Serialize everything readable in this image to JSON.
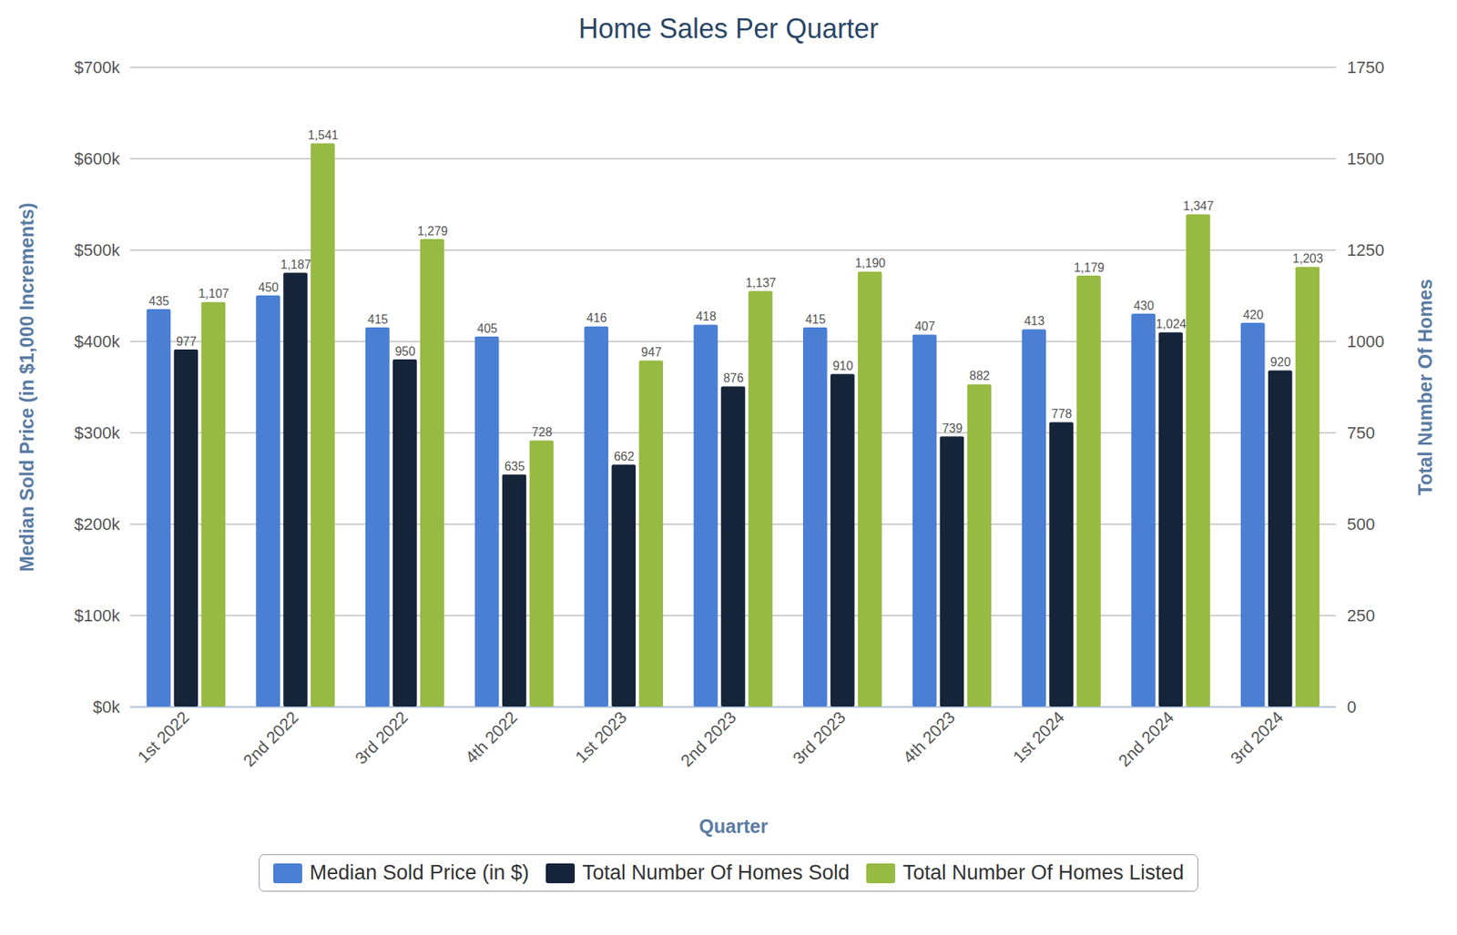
{
  "chart_data": {
    "type": "bar",
    "title": "Home Sales Per Quarter",
    "x_label": "Quarter",
    "y_label": "Median Sold Price (in $1,000 Increments)",
    "y2_label": "Total Number Of Homes",
    "categories": [
      "1st 2022",
      "2nd 2022",
      "3rd 2022",
      "4th 2022",
      "1st 2023",
      "2nd 2023",
      "3rd 2023",
      "4th 2023",
      "1st 2024",
      "2nd 2024",
      "3rd 2024"
    ],
    "series": [
      {
        "name": "Median Sold Price (in $)",
        "color": "#4a7fd4",
        "values": [
          435,
          450,
          415,
          405,
          416,
          418,
          415,
          407,
          413,
          430,
          420
        ]
      },
      {
        "name": "Total Number Of Homes Sold",
        "color": "#16243a",
        "axis": "y2",
        "values": [
          977,
          1187,
          950,
          635,
          662,
          876,
          910,
          739,
          778,
          1024,
          920
        ],
        "value_labels": [
          "977",
          "1,187",
          "950",
          "635",
          "662",
          "876",
          "910",
          "739",
          "778",
          "1,024",
          "920"
        ]
      },
      {
        "name": "Total Number Of Homes Listed",
        "color": "#97ba42",
        "axis": "y2",
        "values": [
          1107,
          1541,
          1279,
          728,
          947,
          1137,
          1190,
          882,
          1179,
          1347,
          1203
        ],
        "value_labels": [
          "1,107",
          "1,541",
          "1,279",
          "728",
          "947",
          "1,137",
          "1,190",
          "882",
          "1,179",
          "1,347",
          "1,203"
        ]
      }
    ],
    "ylim": [
      0,
      700
    ],
    "yticks": [
      {
        "value": 0,
        "label": "$0k"
      },
      {
        "value": 100,
        "label": "$100k"
      },
      {
        "value": 200,
        "label": "$200k"
      },
      {
        "value": 300,
        "label": "$300k"
      },
      {
        "value": 400,
        "label": "$400k"
      },
      {
        "value": 500,
        "label": "$500k"
      },
      {
        "value": 600,
        "label": "$600k"
      },
      {
        "value": 700,
        "label": "$700k"
      }
    ],
    "y2lim": [
      0,
      1750
    ],
    "y2ticks": [
      0,
      250,
      500,
      750,
      1000,
      1250,
      1500,
      1750
    ],
    "grid": true,
    "data_labels": true,
    "legend": "bottom"
  }
}
